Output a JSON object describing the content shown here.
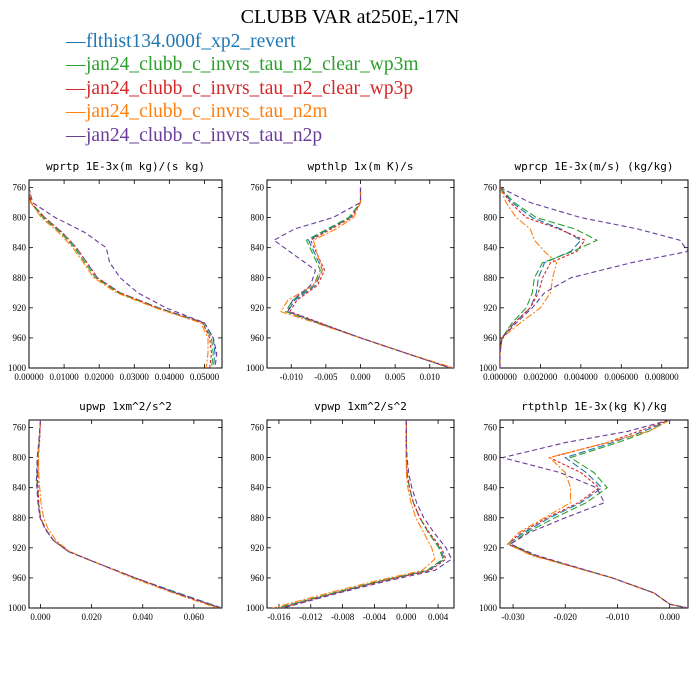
{
  "title": "CLUBB VAR at250E,-17N",
  "series": [
    {
      "name": "flthist134.000f_xp2_revert",
      "color": "#1f77b4"
    },
    {
      "name": "jan24_clubb_c_invrs_tau_n2_clear_wp3m",
      "color": "#2ca02c"
    },
    {
      "name": "jan24_clubb_c_invrs_tau_n2_clear_wp3p",
      "color": "#d62728"
    },
    {
      "name": "jan24_clubb_c_invrs_tau_n2m",
      "color": "#ff7f0e"
    },
    {
      "name": "jan24_clubb_c_invrs_tau_n2p",
      "color": "#6a3d9a"
    }
  ],
  "chart_data": [
    {
      "type": "line",
      "title": "wprtp  1E-3x(m kg)/(s kg)",
      "ylim": [
        1000,
        750
      ],
      "yticks": [
        "760",
        "800",
        "840",
        "880",
        "920",
        "960",
        "1000"
      ],
      "xlim": [
        0,
        0.055
      ],
      "xticks": [
        "0.00000",
        "0.01000",
        "0.02000",
        "0.03000",
        "0.04000",
        "0.05000"
      ],
      "y": [
        760,
        780,
        800,
        820,
        840,
        860,
        880,
        900,
        920,
        940,
        960,
        980,
        1000
      ],
      "series": [
        {
          "name": "flthist134.000f_xp2_revert",
          "values": [
            0.0,
            0.0005,
            0.0045,
            0.0095,
            0.0135,
            0.0165,
            0.0195,
            0.026,
            0.037,
            0.05,
            0.0525,
            0.053,
            0.0525
          ]
        },
        {
          "name": "jan24_clubb_c_invrs_tau_n2_clear_wp3m",
          "values": [
            0.0,
            0.0005,
            0.004,
            0.009,
            0.013,
            0.016,
            0.019,
            0.0255,
            0.0365,
            0.0495,
            0.052,
            0.0525,
            0.052
          ]
        },
        {
          "name": "jan24_clubb_c_invrs_tau_n2_clear_wp3p",
          "values": [
            0.0,
            0.0005,
            0.0045,
            0.0095,
            0.0135,
            0.0165,
            0.0195,
            0.026,
            0.0365,
            0.0495,
            0.0515,
            0.052,
            0.0515
          ]
        },
        {
          "name": "jan24_clubb_c_invrs_tau_n2m",
          "values": [
            0.0,
            0.0005,
            0.0035,
            0.0085,
            0.0125,
            0.0155,
            0.0185,
            0.025,
            0.036,
            0.049,
            0.051,
            0.051,
            0.0505
          ]
        },
        {
          "name": "jan24_clubb_c_invrs_tau_n2p",
          "values": [
            0.0,
            0.001,
            0.0075,
            0.016,
            0.022,
            0.023,
            0.026,
            0.031,
            0.039,
            0.05,
            0.0525,
            0.0535,
            0.053
          ]
        }
      ]
    },
    {
      "type": "line",
      "title": "wpthlp  1x(m K)/s",
      "ylim": [
        1000,
        750
      ],
      "yticks": [
        "760",
        "800",
        "840",
        "880",
        "920",
        "960",
        "1000"
      ],
      "xlim": [
        -0.0135,
        0.0135
      ],
      "xticks": [
        "-0.010",
        "-0.005",
        "0.000",
        "0.005",
        "0.010"
      ],
      "y": [
        760,
        780,
        800,
        815,
        830,
        850,
        870,
        890,
        910,
        925,
        940,
        960,
        980,
        1000
      ],
      "series": [
        {
          "name": "flthist134.000f_xp2_revert",
          "values": [
            0.0,
            0.0,
            -0.0015,
            -0.0045,
            -0.0075,
            -0.0065,
            -0.0055,
            -0.0065,
            -0.0095,
            -0.0105,
            -0.006,
            0.0,
            0.0065,
            0.013
          ]
        },
        {
          "name": "jan24_clubb_c_invrs_tau_n2_clear_wp3m",
          "values": [
            0.0,
            0.0,
            -0.0017,
            -0.0048,
            -0.0078,
            -0.0068,
            -0.0058,
            -0.0068,
            -0.0098,
            -0.0108,
            -0.0062,
            0.0,
            0.0065,
            0.013
          ]
        },
        {
          "name": "jan24_clubb_c_invrs_tau_n2_clear_wp3p",
          "values": [
            0.0,
            0.0,
            -0.0013,
            -0.0042,
            -0.0072,
            -0.0062,
            -0.0052,
            -0.0062,
            -0.0092,
            -0.0102,
            -0.0058,
            0.0,
            0.0065,
            0.013
          ]
        },
        {
          "name": "jan24_clubb_c_invrs_tau_n2m",
          "values": [
            0.0,
            0.0,
            -0.001,
            -0.0035,
            -0.0068,
            -0.0062,
            -0.0055,
            -0.0068,
            -0.0105,
            -0.0115,
            -0.0065,
            0.0,
            0.0065,
            0.0135
          ]
        },
        {
          "name": "jan24_clubb_c_invrs_tau_n2p",
          "values": [
            0.0,
            0.0,
            -0.004,
            -0.0095,
            -0.0125,
            -0.0095,
            -0.0065,
            -0.0072,
            -0.0098,
            -0.0105,
            -0.006,
            0.0,
            0.0065,
            0.013
          ]
        }
      ]
    },
    {
      "type": "line",
      "title": "wprcp  1E-3x(m/s) (kg/kg)",
      "ylim": [
        1000,
        750
      ],
      "yticks": [
        "760",
        "800",
        "840",
        "880",
        "920",
        "960",
        "1000"
      ],
      "xlim": [
        0,
        0.0093
      ],
      "xticks": [
        "0.000000",
        "0.002000",
        "0.004000",
        "0.006000",
        "0.008000"
      ],
      "y": [
        760,
        780,
        800,
        815,
        830,
        845,
        860,
        880,
        900,
        920,
        940,
        960,
        980,
        1000
      ],
      "series": [
        {
          "name": "flthist134.000f_xp2_revert",
          "values": [
            0.0,
            0.0006,
            0.0016,
            0.003,
            0.004,
            0.0035,
            0.0022,
            0.0019,
            0.0018,
            0.0015,
            0.0007,
            0.0001,
            0.0,
            0.0
          ]
        },
        {
          "name": "jan24_clubb_c_invrs_tau_n2_clear_wp3m",
          "values": [
            0.0,
            0.0007,
            0.0018,
            0.0037,
            0.0048,
            0.0036,
            0.0021,
            0.0017,
            0.0016,
            0.0013,
            0.0006,
            0.0001,
            0.0,
            0.0
          ]
        },
        {
          "name": "jan24_clubb_c_invrs_tau_n2_clear_wp3p",
          "values": [
            0.0,
            0.0005,
            0.0013,
            0.0029,
            0.0042,
            0.0038,
            0.0025,
            0.0021,
            0.0019,
            0.0015,
            0.0007,
            0.0001,
            0.0,
            0.0
          ]
        },
        {
          "name": "jan24_clubb_c_invrs_tau_n2m",
          "values": [
            0.0,
            0.0003,
            0.0008,
            0.0015,
            0.0017,
            0.0022,
            0.0028,
            0.0026,
            0.0025,
            0.002,
            0.001,
            0.0001,
            0.0,
            0.0
          ]
        },
        {
          "name": "jan24_clubb_c_invrs_tau_n2p",
          "values": [
            0.0,
            0.0015,
            0.004,
            0.0068,
            0.0089,
            0.0093,
            0.0065,
            0.0035,
            0.0022,
            0.0016,
            0.0008,
            0.0001,
            0.0,
            0.0
          ]
        }
      ]
    },
    {
      "type": "line",
      "title": "upwp  1xm^2/s^2",
      "ylim": [
        1000,
        750
      ],
      "yticks": [
        "760",
        "800",
        "840",
        "880",
        "920",
        "960",
        "1000"
      ],
      "xlim": [
        -0.0045,
        0.071
      ],
      "xticks": [
        "0.000",
        "0.020",
        "0.040",
        "0.060"
      ],
      "y": [
        750,
        780,
        800,
        830,
        860,
        880,
        895,
        910,
        925,
        940,
        960,
        980,
        1000
      ],
      "series": [
        {
          "name": "flthist134.000f_xp2_revert",
          "values": [
            0.0,
            -0.0005,
            -0.001,
            -0.0012,
            -0.0008,
            0.0,
            0.002,
            0.005,
            0.011,
            0.022,
            0.037,
            0.054,
            0.071
          ]
        },
        {
          "name": "jan24_clubb_c_invrs_tau_n2_clear_wp3m",
          "values": [
            0.0,
            -0.0006,
            -0.0011,
            -0.0014,
            -0.0009,
            0.0,
            0.002,
            0.005,
            0.011,
            0.022,
            0.037,
            0.053,
            0.0705
          ]
        },
        {
          "name": "jan24_clubb_c_invrs_tau_n2_clear_wp3p",
          "values": [
            0.0,
            -0.0004,
            -0.0009,
            -0.0011,
            -0.0007,
            0.0,
            0.002,
            0.005,
            0.011,
            0.022,
            0.037,
            0.053,
            0.0705
          ]
        },
        {
          "name": "jan24_clubb_c_invrs_tau_n2m",
          "values": [
            0.0,
            -0.0005,
            -0.0008,
            -0.0006,
            0.0002,
            0.0012,
            0.003,
            0.006,
            0.0115,
            0.022,
            0.036,
            0.052,
            0.069
          ]
        },
        {
          "name": "jan24_clubb_c_invrs_tau_n2p",
          "values": [
            0.0,
            -0.0007,
            -0.0013,
            -0.0016,
            -0.001,
            -0.0002,
            0.0018,
            0.005,
            0.011,
            0.022,
            0.037,
            0.053,
            0.0705
          ]
        }
      ]
    },
    {
      "type": "line",
      "title": "vpwp  1xm^2/s^2",
      "ylim": [
        1000,
        750
      ],
      "yticks": [
        "760",
        "800",
        "840",
        "880",
        "920",
        "960",
        "1000"
      ],
      "xlim": [
        -0.0175,
        0.006
      ],
      "xticks": [
        "-0.016",
        "-0.012",
        "-0.008",
        "-0.004",
        "0.000",
        "0.004"
      ],
      "y": [
        750,
        780,
        800,
        820,
        840,
        860,
        880,
        900,
        920,
        935,
        950,
        965,
        980,
        1000
      ],
      "series": [
        {
          "name": "flthist134.000f_xp2_revert",
          "values": [
            0.0,
            0.0,
            0.0,
            0.0001,
            0.0004,
            0.0009,
            0.0017,
            0.0028,
            0.0042,
            0.0048,
            0.0028,
            -0.0035,
            -0.009,
            -0.016
          ]
        },
        {
          "name": "jan24_clubb_c_invrs_tau_n2_clear_wp3m",
          "values": [
            0.0,
            0.0,
            0.0,
            0.0001,
            0.0004,
            0.0009,
            0.0017,
            0.0028,
            0.0041,
            0.0046,
            0.0026,
            -0.0037,
            -0.0092,
            -0.0162
          ]
        },
        {
          "name": "jan24_clubb_c_invrs_tau_n2_clear_wp3p",
          "values": [
            0.0,
            0.0,
            0.0,
            0.0001,
            0.0004,
            0.0009,
            0.0017,
            0.0029,
            0.0044,
            0.005,
            0.003,
            -0.0033,
            -0.0088,
            -0.0158
          ]
        },
        {
          "name": "jan24_clubb_c_invrs_tau_n2m",
          "values": [
            0.0,
            0.0,
            0.0,
            0.0,
            0.0002,
            0.0006,
            0.0012,
            0.0022,
            0.0032,
            0.0036,
            0.002,
            -0.0042,
            -0.0098,
            -0.0168
          ]
        },
        {
          "name": "jan24_clubb_c_invrs_tau_n2p",
          "values": [
            0.0,
            0.0,
            0.0001,
            0.0003,
            0.0007,
            0.0013,
            0.0022,
            0.0035,
            0.005,
            0.0057,
            0.0036,
            -0.0028,
            -0.0085,
            -0.0155
          ]
        }
      ]
    },
    {
      "type": "line",
      "title": "rtpthlp  1E-3x(kg K)/kg",
      "ylim": [
        1000,
        750
      ],
      "yticks": [
        "760",
        "800",
        "840",
        "880",
        "920",
        "960",
        "1000"
      ],
      "xlim": [
        -0.0325,
        0.0035
      ],
      "xticks": [
        "-0.030",
        "-0.020",
        "-0.010",
        "0.000"
      ],
      "y": [
        750,
        765,
        780,
        800,
        820,
        840,
        860,
        880,
        900,
        915,
        930,
        960,
        980,
        995,
        1000
      ],
      "series": [
        {
          "name": "flthist134.000f_xp2_revert",
          "values": [
            0.0,
            -0.005,
            -0.011,
            -0.02,
            -0.016,
            -0.013,
            -0.017,
            -0.023,
            -0.028,
            -0.031,
            -0.026,
            -0.011,
            -0.003,
            0.0,
            0.0035
          ]
        },
        {
          "name": "jan24_clubb_c_invrs_tau_n2_clear_wp3m",
          "values": [
            0.0,
            -0.004,
            -0.01,
            -0.019,
            -0.0145,
            -0.012,
            -0.016,
            -0.022,
            -0.0275,
            -0.0305,
            -0.026,
            -0.011,
            -0.003,
            0.0,
            0.0035
          ]
        },
        {
          "name": "jan24_clubb_c_invrs_tau_n2_clear_wp3p",
          "values": [
            0.0,
            -0.006,
            -0.012,
            -0.023,
            -0.017,
            -0.0135,
            -0.0175,
            -0.0235,
            -0.0285,
            -0.031,
            -0.026,
            -0.011,
            -0.003,
            0.0,
            0.0035
          ]
        },
        {
          "name": "jan24_clubb_c_invrs_tau_n2m",
          "values": [
            0.0,
            -0.004,
            -0.012,
            -0.023,
            -0.02,
            -0.019,
            -0.019,
            -0.024,
            -0.029,
            -0.031,
            -0.0265,
            -0.011,
            -0.003,
            0.0,
            0.0035
          ]
        },
        {
          "name": "jan24_clubb_c_invrs_tau_n2p",
          "values": [
            0.0,
            -0.008,
            -0.02,
            -0.032,
            -0.021,
            -0.014,
            -0.0125,
            -0.02,
            -0.027,
            -0.0305,
            -0.0255,
            -0.011,
            -0.003,
            0.0,
            0.0035
          ]
        }
      ]
    }
  ]
}
